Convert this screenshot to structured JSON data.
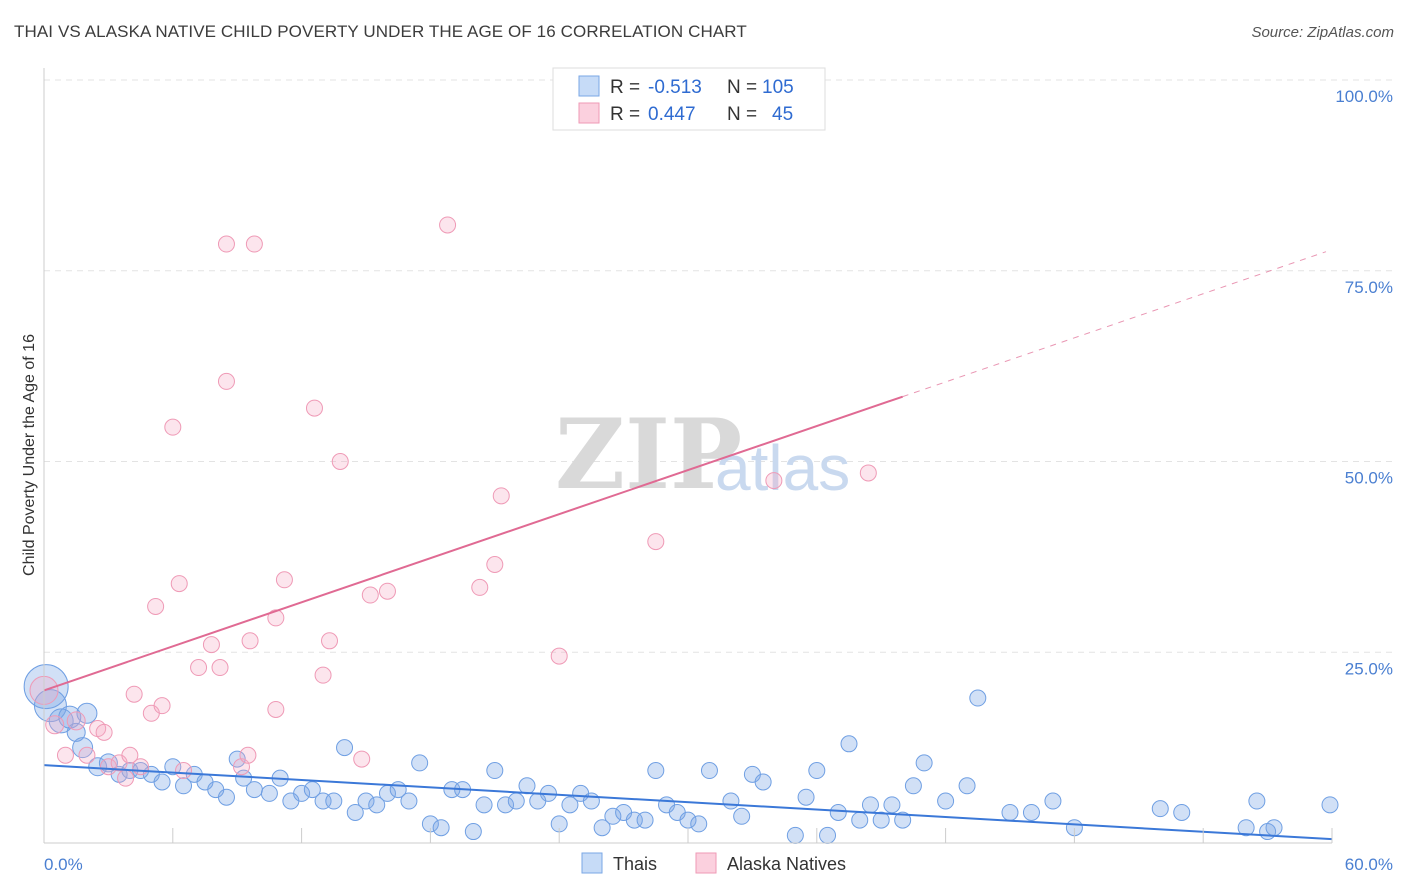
{
  "title": "THAI VS ALASKA NATIVE CHILD POVERTY UNDER THE AGE OF 16 CORRELATION CHART",
  "source": "Source: ZipAtlas.com",
  "watermark": {
    "zip": "ZIP",
    "atlas": "atlas"
  },
  "legend": {
    "r_label": "R =",
    "n_label": "N =",
    "rows": [
      {
        "r": "-0.513",
        "n": "105",
        "color": "#7aa7e6",
        "fill": "#c6dbf7"
      },
      {
        "r": "0.447",
        "n": "45",
        "color": "#ef9ab6",
        "fill": "#fbd0de"
      }
    ]
  },
  "bottom_legend": [
    {
      "label": "Thais",
      "color": "#7aa7e6",
      "fill": "#c6dbf7"
    },
    {
      "label": "Alaska Natives",
      "color": "#ef9ab6",
      "fill": "#fbd0de"
    }
  ],
  "chart_data": {
    "type": "scatter",
    "ylabel": "Child Poverty Under the Age of 16",
    "x_tick_labels": [
      "0.0%",
      "60.0%"
    ],
    "y_tick_labels": [
      "100.0%",
      "75.0%",
      "50.0%",
      "25.0%"
    ],
    "y_ticks": [
      100,
      75,
      50,
      25
    ],
    "xlim": [
      0,
      60
    ],
    "ylim": [
      0,
      100
    ],
    "grid": true,
    "series": [
      {
        "name": "Thais",
        "color": "#3b78d8",
        "trend": {
          "x": [
            0,
            60
          ],
          "y": [
            10.2,
            0.5
          ],
          "dashed_extension": false
        },
        "points": [
          [
            0.1,
            20.5,
            22
          ],
          [
            0.3,
            18,
            16
          ],
          [
            0.8,
            16,
            12
          ],
          [
            1.2,
            16.5,
            11
          ],
          [
            1.5,
            14.5,
            9
          ],
          [
            1.8,
            12.5,
            10
          ],
          [
            2.0,
            17,
            10
          ],
          [
            2.5,
            10,
            9
          ],
          [
            3.0,
            10.5,
            9
          ],
          [
            3.5,
            9,
            8
          ],
          [
            4.0,
            9.5,
            8
          ],
          [
            4.5,
            9.5,
            8
          ],
          [
            5.0,
            9,
            8
          ],
          [
            5.5,
            8,
            8
          ],
          [
            6.0,
            10,
            8
          ],
          [
            6.5,
            7.5,
            8
          ],
          [
            7.0,
            9,
            8
          ],
          [
            7.5,
            8,
            8
          ],
          [
            8.0,
            7,
            8
          ],
          [
            8.5,
            6,
            8
          ],
          [
            9.0,
            11,
            8
          ],
          [
            9.3,
            8.5,
            8
          ],
          [
            9.8,
            7,
            8
          ],
          [
            10.5,
            6.5,
            8
          ],
          [
            11,
            8.5,
            8
          ],
          [
            11.5,
            5.5,
            8
          ],
          [
            12,
            6.5,
            8
          ],
          [
            12.5,
            7,
            8
          ],
          [
            13,
            5.5,
            8
          ],
          [
            13.5,
            5.5,
            8
          ],
          [
            14,
            12.5,
            8
          ],
          [
            14.5,
            4,
            8
          ],
          [
            15,
            5.5,
            8
          ],
          [
            15.5,
            5,
            8
          ],
          [
            16,
            6.5,
            8
          ],
          [
            16.5,
            7,
            8
          ],
          [
            17,
            5.5,
            8
          ],
          [
            17.5,
            10.5,
            8
          ],
          [
            18,
            2.5,
            8
          ],
          [
            18.5,
            2,
            8
          ],
          [
            19,
            7,
            8
          ],
          [
            19.5,
            7,
            8
          ],
          [
            20,
            1.5,
            8
          ],
          [
            20.5,
            5,
            8
          ],
          [
            21,
            9.5,
            8
          ],
          [
            21.5,
            5,
            8
          ],
          [
            22,
            5.5,
            8
          ],
          [
            22.5,
            7.5,
            8
          ],
          [
            23,
            5.5,
            8
          ],
          [
            23.5,
            6.5,
            8
          ],
          [
            24,
            2.5,
            8
          ],
          [
            24.5,
            5,
            8
          ],
          [
            25,
            6.5,
            8
          ],
          [
            25.5,
            5.5,
            8
          ],
          [
            26,
            2,
            8
          ],
          [
            26.5,
            3.5,
            8
          ],
          [
            27,
            4,
            8
          ],
          [
            27.5,
            3,
            8
          ],
          [
            28,
            3,
            8
          ],
          [
            28.5,
            9.5,
            8
          ],
          [
            29,
            5,
            8
          ],
          [
            29.5,
            4,
            8
          ],
          [
            30,
            3,
            8
          ],
          [
            30.5,
            2.5,
            8
          ],
          [
            31,
            9.5,
            8
          ],
          [
            32,
            5.5,
            8
          ],
          [
            32.5,
            3.5,
            8
          ],
          [
            33,
            9,
            8
          ],
          [
            33.5,
            8,
            8
          ],
          [
            35,
            1,
            8
          ],
          [
            35.5,
            6,
            8
          ],
          [
            36,
            9.5,
            8
          ],
          [
            36.5,
            1,
            8
          ],
          [
            37,
            4,
            8
          ],
          [
            37.5,
            13,
            8
          ],
          [
            38,
            3,
            8
          ],
          [
            38.5,
            5,
            8
          ],
          [
            39,
            3,
            8
          ],
          [
            39.5,
            5,
            8
          ],
          [
            40,
            3,
            8
          ],
          [
            40.5,
            7.5,
            8
          ],
          [
            41,
            10.5,
            8
          ],
          [
            42,
            5.5,
            8
          ],
          [
            43,
            7.5,
            8
          ],
          [
            43.5,
            19,
            8
          ],
          [
            45,
            4,
            8
          ],
          [
            46,
            4,
            8
          ],
          [
            47,
            5.5,
            8
          ],
          [
            48,
            2,
            8
          ],
          [
            52,
            4.5,
            8
          ],
          [
            53,
            4,
            8
          ],
          [
            56,
            2,
            8
          ],
          [
            56.5,
            5.5,
            8
          ],
          [
            57,
            1.5,
            8
          ],
          [
            57.3,
            2,
            8
          ],
          [
            61,
            5,
            8
          ]
        ]
      },
      {
        "name": "Alaska Natives",
        "color": "#e06a93",
        "trend": {
          "x": [
            0,
            40
          ],
          "y": [
            20,
            58.5
          ],
          "extension_to": [
            60,
            77.5
          ],
          "dashed_extension": true
        },
        "points": [
          [
            0.0,
            20,
            14
          ],
          [
            0.5,
            15.5,
            9
          ],
          [
            1.0,
            11.5,
            8
          ],
          [
            1.5,
            16,
            9
          ],
          [
            2.0,
            11.5,
            8
          ],
          [
            2.5,
            15,
            8
          ],
          [
            2.8,
            14.5,
            8
          ],
          [
            3.0,
            10,
            8
          ],
          [
            3.5,
            10.5,
            8
          ],
          [
            3.8,
            8.5,
            8
          ],
          [
            4.0,
            11.5,
            8
          ],
          [
            4.5,
            10,
            8
          ],
          [
            4.2,
            19.5,
            8
          ],
          [
            5,
            17,
            8
          ],
          [
            5.2,
            31,
            8
          ],
          [
            5.5,
            18,
            8
          ],
          [
            6,
            54.5,
            8
          ],
          [
            6.5,
            9.5,
            8
          ],
          [
            6.3,
            34,
            8
          ],
          [
            7.2,
            23,
            8
          ],
          [
            7.8,
            26,
            8
          ],
          [
            8.2,
            23,
            8
          ],
          [
            8.5,
            60.5,
            8
          ],
          [
            8.5,
            78.5,
            8
          ],
          [
            9.2,
            10,
            8
          ],
          [
            9.5,
            11.5,
            8
          ],
          [
            9.6,
            26.5,
            8
          ],
          [
            9.8,
            78.5,
            8
          ],
          [
            10.8,
            29.5,
            8
          ],
          [
            10.8,
            17.5,
            8
          ],
          [
            11.2,
            34.5,
            8
          ],
          [
            12.6,
            57,
            8
          ],
          [
            13,
            22,
            8
          ],
          [
            13.3,
            26.5,
            8
          ],
          [
            13.8,
            50,
            8
          ],
          [
            14.8,
            11,
            8
          ],
          [
            15.2,
            32.5,
            8
          ],
          [
            16.0,
            33,
            8
          ],
          [
            18.8,
            81,
            8
          ],
          [
            20.3,
            33.5,
            8
          ],
          [
            21.3,
            45.5,
            8
          ],
          [
            21.0,
            36.5,
            8
          ],
          [
            24.0,
            24.5,
            8
          ],
          [
            28.5,
            39.5,
            8
          ],
          [
            34,
            47.5,
            8
          ],
          [
            38.4,
            48.5,
            8
          ]
        ]
      }
    ]
  }
}
